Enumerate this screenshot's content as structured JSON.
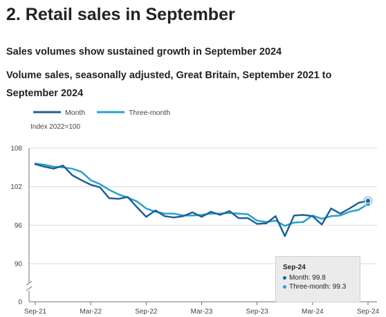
{
  "section_title": "2.  Retail sales in September",
  "headline": "Sales volumes show sustained growth in September 2024",
  "subtitle": "Volume sales, seasonally adjusted, Great Britain, September 2021 to September 2024",
  "tooltip": {
    "title": "Sep-24",
    "month": "Month: 99.8",
    "three_month": "Three-month: 99.3"
  },
  "colors": {
    "month": "#206095",
    "three_month": "#27a0cc",
    "axis": "#707071",
    "grid": "#d9d9d9"
  },
  "chart_data": {
    "type": "line",
    "ylabel": "Index 2022=100",
    "yticks": [
      0,
      90,
      96,
      102,
      108
    ],
    "ylim": [
      88,
      108
    ],
    "y_axis_break": true,
    "grid": true,
    "legend": "top-left",
    "x": [
      "Sep-21",
      "Oct-21",
      "Nov-21",
      "Dec-21",
      "Jan-22",
      "Feb-22",
      "Mar-22",
      "Apr-22",
      "May-22",
      "Jun-22",
      "Jul-22",
      "Aug-22",
      "Sep-22",
      "Oct-22",
      "Nov-22",
      "Dec-22",
      "Jan-23",
      "Feb-23",
      "Mar-23",
      "Apr-23",
      "May-23",
      "Jun-23",
      "Jul-23",
      "Aug-23",
      "Sep-23",
      "Oct-23",
      "Nov-23",
      "Dec-23",
      "Jan-24",
      "Feb-24",
      "Mar-24",
      "Apr-24",
      "May-24",
      "Jun-24",
      "Jul-24",
      "Aug-24",
      "Sep-24"
    ],
    "xticks": [
      "Sep-21",
      "Mar-22",
      "Sep-22",
      "Mar-23",
      "Sep-23",
      "Mar-24",
      "Sep-24"
    ],
    "series": [
      {
        "name": "Month",
        "values": [
          105.5,
          105.1,
          104.8,
          105.3,
          103.8,
          103.0,
          102.3,
          101.9,
          100.2,
          100.1,
          100.4,
          98.8,
          97.3,
          98.3,
          97.4,
          97.2,
          97.4,
          98.0,
          97.3,
          98.1,
          97.6,
          98.2,
          97.1,
          97.1,
          96.2,
          96.3,
          97.4,
          94.3,
          97.5,
          97.6,
          97.4,
          96.1,
          98.6,
          97.8,
          98.6,
          99.5,
          99.8
        ]
      },
      {
        "name": "Three-month",
        "values": [
          105.6,
          105.4,
          105.1,
          105.0,
          104.8,
          104.3,
          103.0,
          102.4,
          101.5,
          100.8,
          100.3,
          99.7,
          98.6,
          98.1,
          97.8,
          97.8,
          97.5,
          97.5,
          97.6,
          97.8,
          97.8,
          97.9,
          97.8,
          97.7,
          96.7,
          96.5,
          96.7,
          95.9,
          96.4,
          96.5,
          97.5,
          97.0,
          97.4,
          97.5,
          98.1,
          98.4,
          99.3
        ]
      }
    ]
  }
}
